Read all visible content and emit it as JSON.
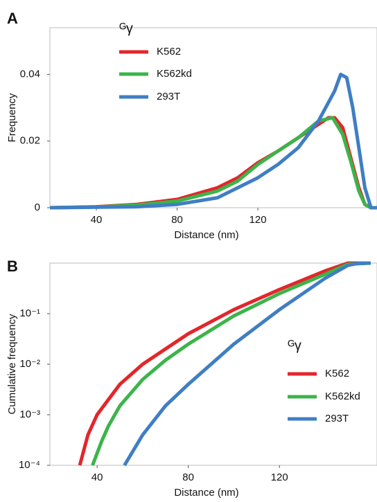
{
  "chart_data": [
    {
      "type": "line",
      "panel": "A",
      "x_label": "Distance (nm)",
      "y_label": "Frequency",
      "legend_title": "ᴳγ",
      "xlim": [
        17,
        179
      ],
      "xticks": [
        40,
        80,
        120
      ],
      "ylim": [
        0,
        0.054
      ],
      "yticks": [
        0,
        0.02,
        0.04
      ],
      "log_y": false,
      "series": [
        {
          "name": "K562",
          "color": "#e3262b",
          "x": [
            17,
            40,
            60,
            80,
            100,
            110,
            120,
            130,
            140,
            150,
            155,
            158,
            162,
            166,
            170,
            173,
            176,
            179
          ],
          "values": [
            0,
            0.0003,
            0.001,
            0.0025,
            0.006,
            0.009,
            0.0135,
            0.017,
            0.021,
            0.025,
            0.027,
            0.027,
            0.024,
            0.015,
            0.006,
            0.001,
            0,
            0
          ]
        },
        {
          "name": "K562kd",
          "color": "#3cb44a",
          "x": [
            17,
            40,
            60,
            80,
            100,
            110,
            120,
            130,
            140,
            150,
            157,
            162,
            166,
            170,
            173,
            176,
            179
          ],
          "values": [
            0,
            0.0002,
            0.0008,
            0.002,
            0.005,
            0.008,
            0.013,
            0.017,
            0.021,
            0.026,
            0.027,
            0.022,
            0.014,
            0.005,
            0.001,
            0,
            0
          ]
        },
        {
          "name": "293T",
          "color": "#3f7ec4",
          "x": [
            17,
            60,
            80,
            100,
            120,
            130,
            140,
            150,
            158,
            161,
            164,
            167,
            170,
            173,
            176,
            179
          ],
          "values": [
            0,
            0.0003,
            0.001,
            0.003,
            0.009,
            0.013,
            0.018,
            0.026,
            0.035,
            0.04,
            0.039,
            0.03,
            0.018,
            0.006,
            0,
            0
          ]
        }
      ]
    },
    {
      "type": "line",
      "panel": "B",
      "x_label": "Distance (nm)",
      "y_label": "Cumulative frequency",
      "legend_title": "ᴳγ",
      "xlim": [
        19.3,
        162.8
      ],
      "xticks": [
        40,
        80,
        120
      ],
      "ylim": [
        0.0001,
        1
      ],
      "log_y": true,
      "yticks": [
        {
          "value": 0.0001,
          "label": "10⁻⁴"
        },
        {
          "value": 0.001,
          "label": "10⁻³"
        },
        {
          "value": 0.01,
          "label": "10⁻²"
        },
        {
          "value": 0.1,
          "label": "10⁻¹"
        }
      ],
      "series": [
        {
          "name": "K562",
          "color": "#e3262b",
          "x": [
            32.4,
            36,
            40,
            45,
            50,
            60,
            70,
            80,
            100,
            120,
            140,
            150,
            160
          ],
          "values": [
            0.0001,
            0.0004,
            0.001,
            0.002,
            0.004,
            0.01,
            0.02,
            0.04,
            0.12,
            0.3,
            0.7,
            1,
            1
          ]
        },
        {
          "name": "K562kd",
          "color": "#3cb44a",
          "x": [
            38,
            42,
            45,
            50,
            60,
            70,
            80,
            100,
            120,
            140,
            150,
            160
          ],
          "values": [
            0.0001,
            0.0003,
            0.0006,
            0.0015,
            0.005,
            0.012,
            0.025,
            0.09,
            0.25,
            0.6,
            0.95,
            1
          ]
        },
        {
          "name": "293T",
          "color": "#3f7ec4",
          "x": [
            52,
            60,
            70,
            80,
            100,
            120,
            140,
            150,
            155,
            160
          ],
          "values": [
            0.0001,
            0.0004,
            0.0015,
            0.004,
            0.025,
            0.12,
            0.5,
            0.9,
            1,
            1
          ]
        }
      ]
    }
  ]
}
